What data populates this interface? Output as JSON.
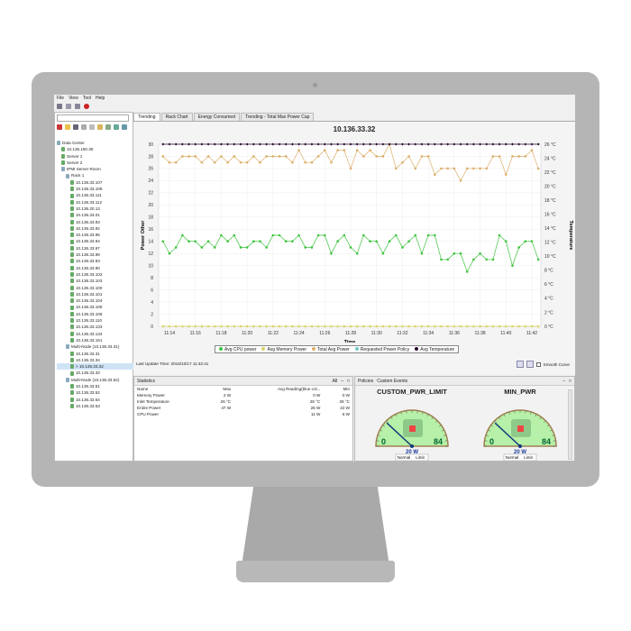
{
  "menu": [
    "File",
    "View",
    "Tool",
    "Help"
  ],
  "tabs": [
    "Trending",
    "Rack Chart",
    "Energy Consumed",
    "Trending - Total Max Power Cap"
  ],
  "tree": [
    {
      "label": "Data Center",
      "level": 0
    },
    {
      "label": "10.136.160.35",
      "level": 1
    },
    {
      "label": "Server 1",
      "level": 1
    },
    {
      "label": "Server 2",
      "level": 1
    },
    {
      "label": "IPMI Server Room",
      "level": 1
    },
    {
      "label": "Rack 1",
      "level": 2
    },
    {
      "label": "10.136.33.107",
      "level": 3
    },
    {
      "label": "10.136.33.108",
      "level": 3
    },
    {
      "label": "10.136.33.111",
      "level": 3
    },
    {
      "label": "10.136.33.112",
      "level": 3
    },
    {
      "label": "10.136.20.13",
      "level": 3
    },
    {
      "label": "10.136.33.01",
      "level": 3
    },
    {
      "label": "10.136.33.83",
      "level": 3
    },
    {
      "label": "10.136.33.92",
      "level": 3
    },
    {
      "label": "10.136.33.95",
      "level": 3
    },
    {
      "label": "10.136.33.94",
      "level": 3
    },
    {
      "label": "10.136.33.97",
      "level": 3
    },
    {
      "label": "10.136.33.98",
      "level": 3
    },
    {
      "label": "10.136.33.93",
      "level": 3
    },
    {
      "label": "10.136.33.90",
      "level": 3
    },
    {
      "label": "10.136.33.102",
      "level": 3
    },
    {
      "label": "10.136.33.103",
      "level": 3
    },
    {
      "label": "10.136.33.100",
      "level": 3
    },
    {
      "label": "10.136.33.101",
      "level": 3
    },
    {
      "label": "10.136.33.104",
      "level": 3
    },
    {
      "label": "10.136.33.106",
      "level": 3
    },
    {
      "label": "10.136.33.109",
      "level": 3
    },
    {
      "label": "10.136.33.110",
      "level": 3
    },
    {
      "label": "10.136.33.133",
      "level": 3
    },
    {
      "label": "10.136.33.134",
      "level": 3
    },
    {
      "label": "10.136.33.151",
      "level": 3
    },
    {
      "label": "Multi-Node (10.136.33.31)",
      "level": 2
    },
    {
      "label": "10.136.33.31",
      "level": 3
    },
    {
      "label": "10.136.33.34",
      "level": 3
    },
    {
      "label": "> 10.136.33.32",
      "level": 3,
      "selected": true
    },
    {
      "label": "10.136.33.33",
      "level": 3
    },
    {
      "label": "Multi-Node (10.136.33.52)",
      "level": 2
    },
    {
      "label": "10.136.33.51",
      "level": 3
    },
    {
      "label": "10.136.33.52",
      "level": 3
    },
    {
      "label": "10.136.33.54",
      "level": 3
    },
    {
      "label": "10.136.33.53",
      "level": 3
    }
  ],
  "last_update": "Last Update Time: 2016/10/17 11:42:41",
  "smooth_curve": "Smooth Curve",
  "statistics": {
    "title": "Statistics",
    "filter": "All",
    "columns": [
      "Name",
      "Max",
      "Avg Reading(blue col...",
      "Min"
    ],
    "rows": [
      [
        "Memory Power",
        "2 W",
        "0 W",
        "0 W"
      ],
      [
        "Inlet Temperature",
        "26 °C",
        "26 °C",
        "26 °C"
      ],
      [
        "Entire Power",
        "47 W",
        "26 W",
        "22 W"
      ],
      [
        "CPU Power",
        "",
        "11 W",
        "6 W"
      ]
    ]
  },
  "policies": {
    "tabs": [
      "Policies",
      "Custom Events"
    ],
    "gauges": [
      {
        "title": "CUSTOM_PWR_LIMIT",
        "min": "0",
        "max": "84",
        "value": "20 W",
        "value_num": 20,
        "legend": [
          "Normal",
          "Limit"
        ]
      },
      {
        "title": "MIN_PWR",
        "min": "0",
        "max": "84",
        "value": "20 W",
        "value_num": 20,
        "legend": [
          "Normal",
          "Limit"
        ]
      }
    ]
  },
  "chart_data": {
    "type": "line",
    "title": "10.136.33.32",
    "xlabel": "Time",
    "ylabel": "Power Other",
    "y2label": "Temperature",
    "ylim": [
      0,
      30
    ],
    "y2lim": [
      0,
      26
    ],
    "y2unit": "°C",
    "xticks": [
      "11:14",
      "11:16",
      "11:18",
      "11:20",
      "11:22",
      "11:24",
      "11:26",
      "11:28",
      "11:30",
      "11:32",
      "11:34",
      "11:36",
      "11:38",
      "11:40",
      "11:42"
    ],
    "x_start": "11:13:30",
    "x_step_seconds": 30,
    "grid": true,
    "legend": "bottom",
    "series": [
      {
        "name": "Avg CPU power",
        "color": "#3fc43f",
        "axis": "left",
        "values": [
          14,
          12,
          13,
          15,
          14,
          14,
          13,
          14,
          13,
          15,
          14,
          15,
          13,
          13,
          14,
          14,
          13,
          15,
          15,
          14,
          14,
          15,
          13,
          13,
          15,
          15,
          12,
          14,
          15,
          13,
          12,
          15,
          14,
          14,
          12,
          14,
          15,
          13,
          14,
          15,
          12,
          15,
          15,
          11,
          11,
          12,
          12,
          9,
          11,
          12,
          11,
          11,
          15,
          14,
          10,
          13,
          14,
          14,
          11
        ]
      },
      {
        "name": "Avg Memory Power",
        "color": "#d9d36a",
        "axis": "left",
        "values": [
          0,
          0,
          0,
          0,
          0,
          0,
          0,
          0,
          0,
          0,
          0,
          0,
          0,
          0,
          0,
          0,
          0,
          0,
          0,
          0,
          0,
          0,
          0,
          0,
          0,
          0,
          0,
          0,
          0,
          0,
          0,
          0,
          0,
          0,
          0,
          0,
          0,
          0,
          0,
          0,
          0,
          0,
          0,
          0,
          0,
          0,
          0,
          0,
          0,
          0,
          0,
          0,
          0,
          0,
          0,
          0,
          0,
          0,
          0
        ]
      },
      {
        "name": "Total Avg Power",
        "color": "#dcae6a",
        "axis": "left",
        "values": [
          28,
          27,
          27,
          28,
          28,
          28,
          27,
          28,
          27,
          28,
          27,
          28,
          27,
          27,
          28,
          27,
          28,
          28,
          28,
          28,
          27,
          29,
          27,
          27,
          28,
          29,
          27,
          29,
          29,
          26,
          29,
          28,
          29,
          28,
          28,
          30,
          26,
          27,
          28,
          26,
          28,
          28,
          25,
          26,
          26,
          26,
          24,
          26,
          26,
          26,
          26,
          28,
          28,
          25,
          28,
          28,
          28,
          29,
          26
        ]
      },
      {
        "name": "Requested Power Policy",
        "color": "#6cc9c9",
        "axis": "left",
        "values": []
      },
      {
        "name": "Avg Temperature",
        "color": "#2a0a2e",
        "axis": "right",
        "values": [
          26,
          26,
          26,
          26,
          26,
          26,
          26,
          26,
          26,
          26,
          26,
          26,
          26,
          26,
          26,
          26,
          26,
          26,
          26,
          26,
          26,
          26,
          26,
          26,
          26,
          26,
          26,
          26,
          26,
          26,
          26,
          26,
          26,
          26,
          26,
          26,
          26,
          26,
          26,
          26,
          26,
          26,
          26,
          26,
          26,
          26,
          26,
          26,
          26,
          26,
          26,
          26,
          26,
          26,
          26,
          26,
          26,
          26,
          26
        ]
      }
    ]
  }
}
